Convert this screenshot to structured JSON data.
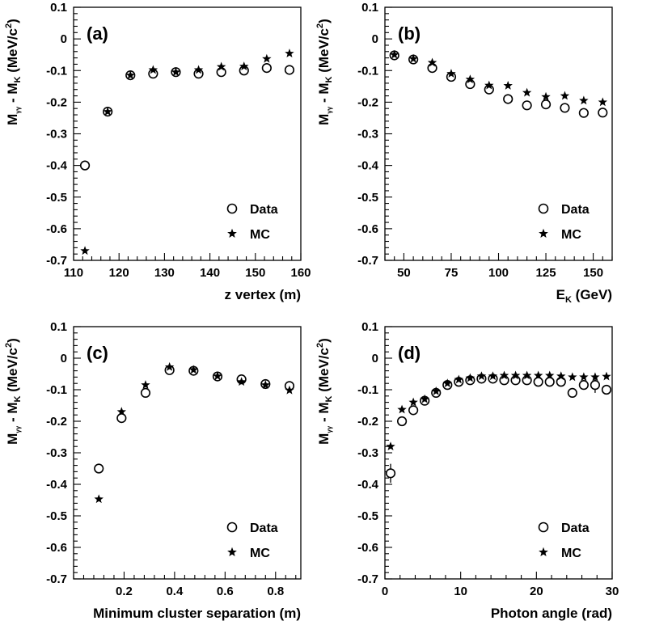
{
  "chart_data": [
    {
      "type": "scatter",
      "panel_label": "(a)",
      "xlabel": "z vertex (m)",
      "ylabel": {
        "main": "M",
        "sub": "γγ",
        "mid": " - M",
        "sub2": "K",
        "unit_pre": " (MeV/c",
        "unit_sup": "2",
        "unit_post": ")"
      },
      "xlim": [
        110,
        160
      ],
      "ylim": [
        -0.7,
        0.1
      ],
      "xticks": [
        110,
        120,
        130,
        140,
        150,
        160
      ],
      "xtick_labels": [
        "110",
        "120",
        "130",
        "140",
        "150",
        "160"
      ],
      "yticks": [
        0.1,
        0,
        -0.1,
        -0.2,
        -0.3,
        -0.4,
        -0.5,
        -0.6,
        -0.7
      ],
      "ytick_labels": [
        "0.1",
        "0",
        "-0.1",
        "-0.2",
        "-0.3",
        "-0.4",
        "-0.5",
        "-0.6",
        "-0.7"
      ],
      "legend": [
        "Data",
        "MC"
      ],
      "legend_position": "bottom-right",
      "series": [
        {
          "name": "Data",
          "marker": "circle",
          "x": [
            112.5,
            117.5,
            122.5,
            127.5,
            132.5,
            137.5,
            142.5,
            147.5,
            152.5,
            157.5
          ],
          "y": [
            -0.4,
            -0.23,
            -0.115,
            -0.11,
            -0.105,
            -0.11,
            -0.105,
            -0.1,
            -0.092,
            -0.098
          ]
        },
        {
          "name": "MC",
          "marker": "star",
          "x": [
            112.5,
            117.5,
            122.5,
            127.5,
            132.5,
            137.5,
            142.5,
            147.5,
            152.5,
            157.5
          ],
          "y": [
            -0.67,
            -0.23,
            -0.115,
            -0.098,
            -0.105,
            -0.098,
            -0.088,
            -0.087,
            -0.063,
            -0.046
          ]
        }
      ]
    },
    {
      "type": "scatter",
      "panel_label": "(b)",
      "xlabel": {
        "main": "E",
        "sub": "K",
        "post": " (GeV)"
      },
      "ylabel": {
        "main": "M",
        "sub": "γγ",
        "mid": " - M",
        "sub2": "K",
        "unit_pre": " (MeV/c",
        "unit_sup": "2",
        "unit_post": ")"
      },
      "xlim": [
        40,
        160
      ],
      "ylim": [
        -0.7,
        0.1
      ],
      "xticks": [
        50,
        75,
        100,
        125,
        150
      ],
      "xtick_labels": [
        "50",
        "75",
        "100",
        "125",
        "150"
      ],
      "yticks": [
        0.1,
        0,
        -0.1,
        -0.2,
        -0.3,
        -0.4,
        -0.5,
        -0.6,
        -0.7
      ],
      "ytick_labels": [
        "0.1",
        "0",
        "-0.1",
        "-0.2",
        "-0.3",
        "-0.4",
        "-0.5",
        "-0.6",
        "-0.7"
      ],
      "legend": [
        "Data",
        "MC"
      ],
      "legend_position": "bottom-right",
      "series": [
        {
          "name": "Data",
          "marker": "circle",
          "x": [
            45,
            55,
            65,
            75,
            85,
            95,
            105,
            115,
            125,
            135,
            145,
            155
          ],
          "y": [
            -0.052,
            -0.065,
            -0.092,
            -0.12,
            -0.143,
            -0.16,
            -0.19,
            -0.21,
            -0.207,
            -0.218,
            -0.234,
            -0.233
          ]
        },
        {
          "name": "MC",
          "marker": "star",
          "x": [
            45,
            55,
            65,
            75,
            85,
            95,
            105,
            115,
            125,
            135,
            145,
            155
          ],
          "y": [
            -0.05,
            -0.063,
            -0.075,
            -0.11,
            -0.128,
            -0.147,
            -0.148,
            -0.17,
            -0.183,
            -0.18,
            -0.195,
            -0.2
          ]
        }
      ]
    },
    {
      "type": "scatter",
      "panel_label": "(c)",
      "xlabel": "Minimum cluster separation (m)",
      "ylabel": {
        "main": "M",
        "sub": "γγ",
        "mid": " - M",
        "sub2": "K",
        "unit_pre": " (MeV/c",
        "unit_sup": "2",
        "unit_post": ")"
      },
      "xlim": [
        0,
        0.9
      ],
      "ylim": [
        -0.7,
        0.1
      ],
      "xticks": [
        0.2,
        0.4,
        0.6,
        0.8
      ],
      "xtick_labels": [
        "0.2",
        "0.4",
        "0.6",
        "0.8"
      ],
      "yticks": [
        0.1,
        0,
        -0.1,
        -0.2,
        -0.3,
        -0.4,
        -0.5,
        -0.6,
        -0.7
      ],
      "ytick_labels": [
        "0.1",
        "0",
        "-0.1",
        "-0.2",
        "-0.3",
        "-0.4",
        "-0.5",
        "-0.6",
        "-0.7"
      ],
      "legend": [
        "Data",
        "MC"
      ],
      "legend_position": "bottom-right",
      "series": [
        {
          "name": "Data",
          "marker": "circle",
          "x": [
            0.1,
            0.19,
            0.285,
            0.38,
            0.475,
            0.57,
            0.665,
            0.76,
            0.855
          ],
          "y": [
            -0.35,
            -0.19,
            -0.11,
            -0.038,
            -0.04,
            -0.058,
            -0.067,
            -0.082,
            -0.088
          ]
        },
        {
          "name": "MC",
          "marker": "star",
          "x": [
            0.1,
            0.19,
            0.285,
            0.38,
            0.475,
            0.57,
            0.665,
            0.76,
            0.855
          ],
          "y": [
            -0.447,
            -0.17,
            -0.085,
            -0.028,
            -0.037,
            -0.057,
            -0.075,
            -0.085,
            -0.102
          ]
        }
      ]
    },
    {
      "type": "scatter",
      "panel_label": "(d)",
      "xlabel": "Photon angle (rad)",
      "ylabel": {
        "main": "M",
        "sub": "γγ",
        "mid": " - M",
        "sub2": "K",
        "unit_pre": " (MeV/c",
        "unit_sup": "2",
        "unit_post": ")"
      },
      "xlim": [
        0,
        30
      ],
      "ylim": [
        -0.7,
        0.1
      ],
      "xticks": [
        0,
        10,
        20,
        30
      ],
      "xtick_labels": [
        "0",
        "10",
        "20",
        "30"
      ],
      "yticks": [
        0.1,
        0,
        -0.1,
        -0.2,
        -0.3,
        -0.4,
        -0.5,
        -0.6,
        -0.7
      ],
      "ytick_labels": [
        "0.1",
        "0",
        "-0.1",
        "-0.2",
        "-0.3",
        "-0.4",
        "-0.5",
        "-0.6",
        "-0.7"
      ],
      "legend": [
        "Data",
        "MC"
      ],
      "legend_position": "bottom-right",
      "series": [
        {
          "name": "Data",
          "marker": "circle",
          "x": [
            0.75,
            2.25,
            3.75,
            5.25,
            6.75,
            8.25,
            9.75,
            11.25,
            12.75,
            14.25,
            15.75,
            17.25,
            18.75,
            20.25,
            21.75,
            23.25,
            24.75,
            26.25,
            27.75,
            29.25
          ],
          "y": [
            -0.365,
            -0.2,
            -0.165,
            -0.135,
            -0.11,
            -0.085,
            -0.075,
            -0.07,
            -0.065,
            -0.065,
            -0.07,
            -0.07,
            -0.07,
            -0.075,
            -0.075,
            -0.075,
            -0.11,
            -0.085,
            -0.085,
            -0.1
          ],
          "yerr": [
            0.03,
            0,
            0,
            0,
            0,
            0,
            0,
            0,
            0,
            0,
            0,
            0,
            0,
            0,
            0,
            0,
            0,
            0,
            0.025,
            0
          ]
        },
        {
          "name": "MC",
          "marker": "star",
          "x": [
            0.75,
            2.25,
            3.75,
            5.25,
            6.75,
            8.25,
            9.75,
            11.25,
            12.75,
            14.25,
            15.75,
            17.25,
            18.75,
            20.25,
            21.75,
            23.25,
            24.75,
            26.25,
            27.75,
            29.25
          ],
          "y": [
            -0.28,
            -0.163,
            -0.14,
            -0.13,
            -0.105,
            -0.08,
            -0.068,
            -0.063,
            -0.057,
            -0.057,
            -0.055,
            -0.055,
            -0.055,
            -0.055,
            -0.055,
            -0.057,
            -0.06,
            -0.06,
            -0.06,
            -0.058
          ]
        }
      ]
    }
  ]
}
